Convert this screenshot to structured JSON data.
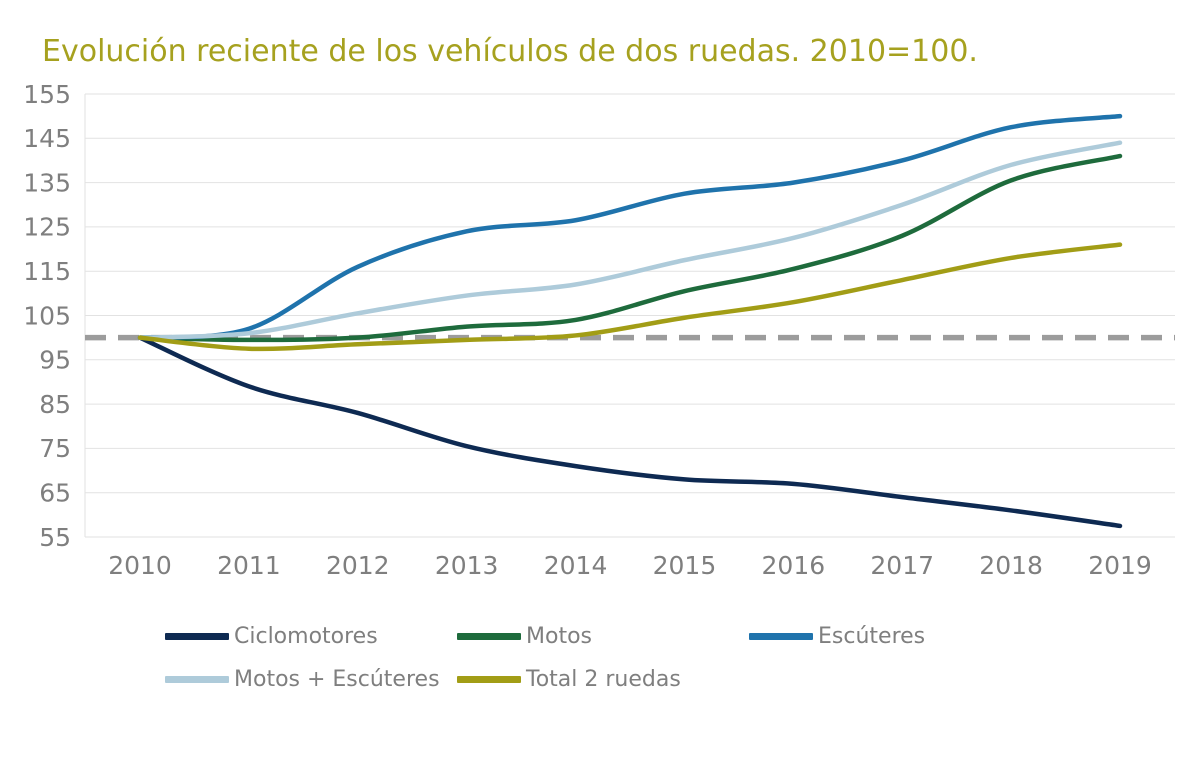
{
  "chart_data": {
    "type": "line",
    "title": "Evolución reciente de los vehículos de dos ruedas. 2010=100.",
    "x": [
      2010,
      2011,
      2012,
      2013,
      2014,
      2015,
      2016,
      2017,
      2018,
      2019
    ],
    "series": [
      {
        "name": "Ciclomotores",
        "color": "#0E2A52",
        "values": [
          100,
          89,
          83,
          75.5,
          71,
          68,
          67,
          64,
          61,
          57.5
        ]
      },
      {
        "name": "Motos",
        "color": "#1E6B3C",
        "values": [
          100,
          99.5,
          100,
          102.5,
          104,
          110.5,
          115.5,
          123,
          135.5,
          141
        ]
      },
      {
        "name": "Escúteres",
        "color": "#1F73AC",
        "values": [
          100,
          102,
          116,
          124,
          126.5,
          132.5,
          135,
          140,
          147.5,
          150
        ]
      },
      {
        "name": "Motos + Escúteres",
        "color": "#AECBDA",
        "values": [
          100,
          101,
          105.5,
          109.5,
          112,
          117.5,
          122.5,
          130,
          139,
          144
        ]
      },
      {
        "name": "Total 2 ruedas",
        "color": "#A29D16",
        "values": [
          100,
          97.5,
          98.5,
          99.5,
          100.5,
          104.5,
          108,
          113,
          118,
          121
        ]
      }
    ],
    "reference_line": {
      "value": 100,
      "color": "#9C9C9C",
      "style": "dashed"
    },
    "ylim": [
      55,
      155
    ],
    "yticks": [
      55,
      65,
      75,
      85,
      95,
      105,
      115,
      125,
      135,
      145,
      155
    ],
    "grid": true,
    "legend_position": "bottom",
    "colors": {
      "title": "#A6A11F",
      "axis_text": "#7F7F7F",
      "grid": "#E2E2E2",
      "legend_text": "#7F7F7F"
    }
  }
}
